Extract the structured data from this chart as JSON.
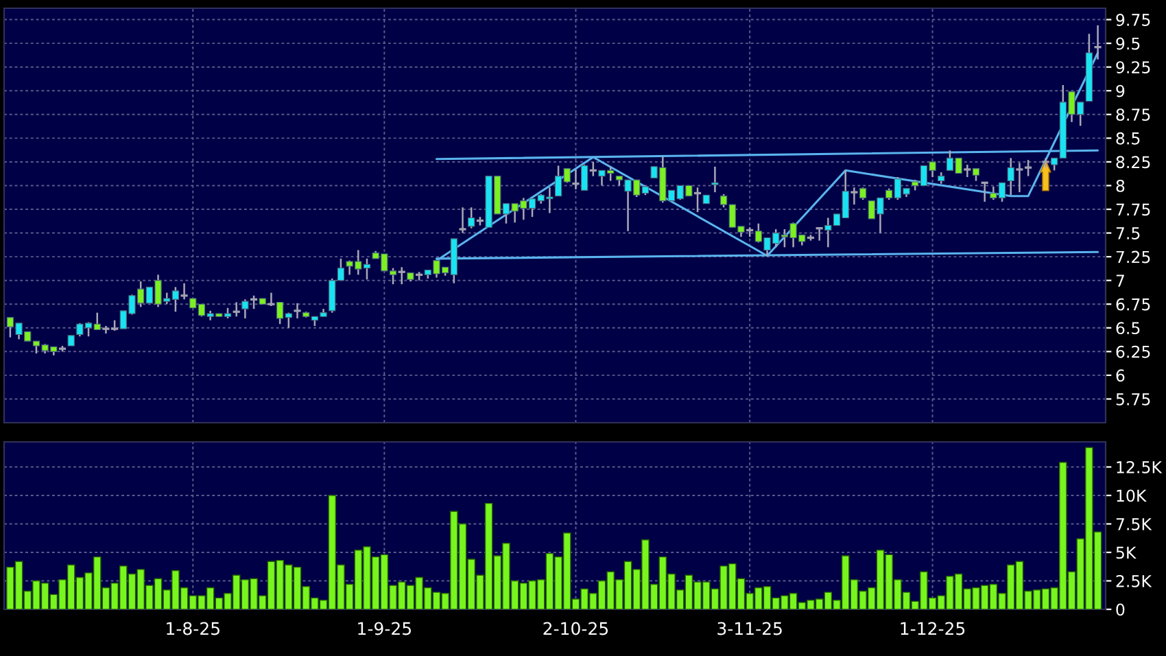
{
  "chart_data": [
    {
      "type": "candlestick",
      "categories": [
        null,
        null,
        null,
        null,
        null,
        null,
        null,
        null,
        null,
        null,
        null,
        null,
        null,
        null,
        null,
        null,
        null,
        null,
        null,
        null,
        null,
        null,
        null,
        null,
        null,
        null,
        null,
        null,
        null,
        null,
        null,
        null,
        null,
        null,
        null,
        null,
        null,
        null,
        null,
        null,
        null,
        null,
        null,
        null,
        null,
        null,
        null,
        null,
        null,
        null,
        null,
        null,
        null,
        null,
        null,
        null,
        null,
        null,
        null,
        null,
        null,
        null,
        null,
        null,
        null,
        null,
        null,
        null,
        null,
        null,
        null,
        null,
        null,
        null,
        null,
        null,
        null,
        null,
        null,
        null,
        null,
        null,
        null,
        null,
        null,
        null,
        null,
        null,
        null,
        null,
        null,
        null,
        null,
        null,
        null,
        null,
        null,
        null,
        null,
        null,
        null,
        null,
        null,
        null,
        null,
        null,
        null,
        null,
        null,
        null,
        null,
        null,
        null,
        null,
        null,
        null,
        null,
        null,
        null,
        null,
        null,
        null,
        null,
        null,
        null,
        null
      ],
      "ohlc": [
        [
          6.61,
          6.61,
          6.4,
          6.51
        ],
        [
          6.43,
          6.55,
          6.38,
          6.55
        ],
        [
          6.46,
          6.46,
          6.36,
          6.36
        ],
        [
          6.36,
          6.36,
          6.23,
          6.31
        ],
        [
          6.32,
          6.33,
          6.23,
          6.26
        ],
        [
          6.3,
          6.3,
          6.21,
          6.25
        ],
        [
          6.28,
          6.31,
          6.25,
          6.28
        ],
        [
          6.31,
          6.42,
          6.31,
          6.42
        ],
        [
          6.43,
          6.55,
          6.41,
          6.54
        ],
        [
          6.5,
          6.56,
          6.41,
          6.55
        ],
        [
          6.54,
          6.66,
          6.48,
          6.48
        ],
        [
          6.49,
          6.52,
          6.44,
          6.49
        ],
        [
          6.49,
          6.58,
          6.47,
          6.49
        ],
        [
          6.49,
          6.68,
          6.49,
          6.68
        ],
        [
          6.65,
          6.85,
          6.64,
          6.84
        ],
        [
          6.91,
          6.99,
          6.72,
          6.76
        ],
        [
          6.76,
          6.93,
          6.76,
          6.93
        ],
        [
          7.0,
          7.06,
          6.72,
          6.75
        ],
        [
          6.78,
          6.87,
          6.75,
          6.81
        ],
        [
          6.8,
          6.93,
          6.67,
          6.89
        ],
        [
          6.84,
          6.97,
          6.8,
          6.84
        ],
        [
          6.81,
          6.81,
          6.71,
          6.71
        ],
        [
          6.75,
          6.75,
          6.62,
          6.63
        ],
        [
          6.62,
          6.68,
          6.58,
          6.65
        ],
        [
          6.65,
          6.65,
          6.62,
          6.62
        ],
        [
          6.62,
          6.71,
          6.6,
          6.65
        ],
        [
          6.67,
          6.77,
          6.62,
          6.67
        ],
        [
          6.7,
          6.8,
          6.6,
          6.78
        ],
        [
          6.8,
          6.84,
          6.7,
          6.8
        ],
        [
          6.81,
          6.81,
          6.75,
          6.75
        ],
        [
          6.75,
          6.87,
          6.73,
          6.75
        ],
        [
          6.77,
          6.77,
          6.54,
          6.6
        ],
        [
          6.61,
          6.66,
          6.5,
          6.65
        ],
        [
          6.68,
          6.76,
          6.6,
          6.68
        ],
        [
          6.66,
          6.67,
          6.61,
          6.62
        ],
        [
          6.58,
          6.62,
          6.52,
          6.62
        ],
        [
          6.62,
          6.7,
          6.62,
          6.66
        ],
        [
          6.68,
          7.02,
          6.66,
          7.0
        ],
        [
          7.0,
          7.23,
          7.0,
          7.13
        ],
        [
          7.2,
          7.21,
          7.06,
          7.15
        ],
        [
          7.2,
          7.32,
          7.06,
          7.12
        ],
        [
          7.13,
          7.23,
          7.01,
          7.17
        ],
        [
          7.29,
          7.31,
          7.23,
          7.23
        ],
        [
          7.28,
          7.28,
          7.1,
          7.1
        ],
        [
          7.1,
          7.13,
          6.96,
          7.06
        ],
        [
          7.09,
          7.14,
          6.96,
          7.09
        ],
        [
          7.08,
          7.08,
          6.99,
          7.01
        ],
        [
          7.06,
          7.09,
          7.0,
          7.06
        ],
        [
          7.06,
          7.11,
          7.02,
          7.11
        ],
        [
          7.21,
          7.21,
          7.03,
          7.07
        ],
        [
          7.14,
          7.14,
          7.05,
          7.08
        ],
        [
          7.06,
          7.44,
          6.97,
          7.44
        ],
        [
          7.54,
          7.77,
          7.5,
          7.54
        ],
        [
          7.57,
          7.77,
          7.55,
          7.66
        ],
        [
          7.63,
          7.67,
          7.58,
          7.63
        ],
        [
          7.56,
          8.1,
          7.56,
          8.1
        ],
        [
          8.1,
          8.1,
          7.7,
          7.7
        ],
        [
          7.7,
          7.81,
          7.6,
          7.81
        ],
        [
          7.81,
          7.81,
          7.61,
          7.73
        ],
        [
          7.84,
          7.87,
          7.64,
          7.76
        ],
        [
          7.76,
          7.86,
          7.67,
          7.86
        ],
        [
          7.84,
          7.91,
          7.81,
          7.9
        ],
        [
          7.86,
          7.98,
          7.71,
          7.88
        ],
        [
          7.89,
          8.21,
          7.89,
          8.1
        ],
        [
          8.18,
          8.18,
          8.03,
          8.04
        ],
        [
          8.02,
          8.17,
          7.96,
          8.02
        ],
        [
          7.95,
          8.22,
          7.95,
          8.21
        ],
        [
          8.16,
          8.25,
          8.1,
          8.16
        ],
        [
          8.1,
          8.16,
          8.0,
          8.16
        ],
        [
          8.16,
          8.2,
          8.05,
          8.13
        ],
        [
          8.1,
          8.1,
          8.0,
          8.06
        ],
        [
          7.94,
          8.06,
          7.52,
          8.06
        ],
        [
          8.06,
          8.06,
          7.88,
          7.9
        ],
        [
          7.92,
          8.0,
          7.9,
          7.99
        ],
        [
          8.08,
          8.2,
          8.08,
          8.2
        ],
        [
          8.19,
          8.31,
          7.82,
          7.84
        ],
        [
          7.84,
          7.95,
          7.84,
          7.95
        ],
        [
          7.86,
          8.0,
          7.85,
          8.0
        ],
        [
          8.0,
          8.0,
          7.89,
          7.89
        ],
        [
          7.92,
          7.98,
          7.72,
          7.92
        ],
        [
          7.81,
          7.9,
          7.81,
          7.9
        ],
        [
          8.01,
          8.2,
          7.93,
          8.03
        ],
        [
          7.89,
          7.91,
          7.77,
          7.8
        ],
        [
          7.8,
          7.8,
          7.56,
          7.56
        ],
        [
          7.57,
          7.57,
          7.46,
          7.51
        ],
        [
          7.53,
          7.56,
          7.46,
          7.53
        ],
        [
          7.52,
          7.6,
          7.4,
          7.41
        ],
        [
          7.32,
          7.45,
          7.26,
          7.45
        ],
        [
          7.39,
          7.54,
          7.35,
          7.5
        ],
        [
          7.48,
          7.54,
          7.35,
          7.46
        ],
        [
          7.6,
          7.61,
          7.35,
          7.45
        ],
        [
          7.48,
          7.48,
          7.37,
          7.41
        ],
        [
          7.45,
          7.48,
          7.42,
          7.45
        ],
        [
          7.55,
          7.55,
          7.42,
          7.55
        ],
        [
          7.53,
          7.66,
          7.35,
          7.58
        ],
        [
          7.58,
          7.7,
          7.58,
          7.7
        ],
        [
          7.66,
          8.16,
          7.66,
          7.94
        ],
        [
          7.93,
          7.98,
          7.8,
          7.93
        ],
        [
          7.97,
          7.98,
          7.85,
          7.87
        ],
        [
          7.84,
          7.84,
          7.65,
          7.65
        ],
        [
          7.7,
          7.87,
          7.5,
          7.87
        ],
        [
          7.95,
          7.97,
          7.85,
          7.87
        ],
        [
          7.87,
          8.09,
          7.85,
          8.07
        ],
        [
          7.91,
          7.97,
          7.88,
          7.97
        ],
        [
          8.04,
          8.06,
          7.95,
          8.0
        ],
        [
          8.0,
          8.21,
          8.0,
          8.21
        ],
        [
          8.25,
          8.25,
          8.09,
          8.16
        ],
        [
          8.05,
          8.14,
          8.02,
          8.1
        ],
        [
          8.16,
          8.37,
          8.16,
          8.29
        ],
        [
          8.29,
          8.29,
          8.13,
          8.13
        ],
        [
          8.17,
          8.22,
          8.09,
          8.17
        ],
        [
          8.18,
          8.18,
          8.05,
          8.11
        ],
        [
          8.03,
          8.03,
          7.83,
          8.03
        ],
        [
          7.92,
          7.99,
          7.85,
          7.87
        ],
        [
          7.87,
          8.03,
          7.83,
          8.03
        ],
        [
          8.05,
          8.29,
          7.9,
          8.19
        ],
        [
          8.17,
          8.24,
          7.93,
          8.17
        ],
        [
          8.19,
          8.27,
          8.1,
          8.19
        ],
        null,
        [
          8.25,
          8.29,
          8.19,
          8.25
        ],
        [
          8.22,
          8.29,
          8.16,
          8.29
        ],
        [
          8.29,
          9.06,
          8.29,
          8.88
        ],
        [
          8.99,
          8.99,
          8.67,
          8.75
        ],
        [
          8.75,
          8.88,
          8.63,
          8.88
        ],
        [
          8.89,
          9.6,
          8.89,
          9.4
        ],
        [
          9.46,
          9.69,
          9.33,
          9.46
        ]
      ],
      "colors": [
        "#7cf021",
        "#19e3f2",
        "#7cf021",
        "#7cf021",
        "#7cf021",
        "#7cf021",
        "#a0a0b0",
        "#19e3f2",
        "#19e3f2",
        "#19e3f2",
        "#7cf021",
        "#a0a0b0",
        "#a0a0b0",
        "#19e3f2",
        "#19e3f2",
        "#7cf021",
        "#19e3f2",
        "#7cf021",
        "#19e3f2",
        "#19e3f2",
        "#a0a0b0",
        "#7cf021",
        "#7cf021",
        "#19e3f2",
        "#7cf021",
        "#19e3f2",
        "#a0a0b0",
        "#19e3f2",
        "#a0a0b0",
        "#7cf021",
        "#a0a0b0",
        "#7cf021",
        "#19e3f2",
        "#a0a0b0",
        "#7cf021",
        "#19e3f2",
        "#19e3f2",
        "#19e3f2",
        "#19e3f2",
        "#7cf021",
        "#7cf021",
        "#19e3f2",
        "#7cf021",
        "#7cf021",
        "#7cf021",
        "#a0a0b0",
        "#7cf021",
        "#a0a0b0",
        "#19e3f2",
        "#7cf021",
        "#7cf021",
        "#19e3f2",
        "#a0a0b0",
        "#19e3f2",
        "#a0a0b0",
        "#19e3f2",
        "#7cf021",
        "#19e3f2",
        "#7cf021",
        "#7cf021",
        "#19e3f2",
        "#19e3f2",
        "#19e3f2",
        "#19e3f2",
        "#7cf021",
        "#a0a0b0",
        "#19e3f2",
        "#a0a0b0",
        "#19e3f2",
        "#7cf021",
        "#7cf021",
        "#19e3f2",
        "#7cf021",
        "#19e3f2",
        "#19e3f2",
        "#7cf021",
        "#19e3f2",
        "#19e3f2",
        "#7cf021",
        "#a0a0b0",
        "#19e3f2",
        "#19e3f2",
        "#7cf021",
        "#7cf021",
        "#7cf021",
        "#a0a0b0",
        "#7cf021",
        "#19e3f2",
        "#19e3f2",
        "#7cf021",
        "#7cf021",
        "#7cf021",
        "#a0a0b0",
        "#a0a0b0",
        "#19e3f2",
        "#19e3f2",
        "#19e3f2",
        "#a0a0b0",
        "#7cf021",
        "#7cf021",
        "#19e3f2",
        "#7cf021",
        "#19e3f2",
        "#19e3f2",
        "#7cf021",
        "#19e3f2",
        "#7cf021",
        "#19e3f2",
        "#19e3f2",
        "#7cf021",
        "#a0a0b0",
        "#7cf021",
        "#a0a0b0",
        "#7cf021",
        "#19e3f2",
        "#19e3f2",
        "#a0a0b0",
        "#a0a0b0",
        "#a0a0b0",
        "#a0a0b0",
        "#19e3f2",
        "#19e3f2",
        "#7cf021",
        "#19e3f2",
        "#19e3f2",
        "#a0a0b0"
      ],
      "series": [
        {
          "type": "line",
          "color": "#5ab4ee",
          "values": [
            null,
            null,
            null,
            null,
            null,
            null,
            null,
            null,
            null,
            null,
            null,
            null,
            null,
            null,
            null,
            null,
            null,
            null,
            null,
            null,
            null,
            null,
            null,
            null,
            null,
            null,
            null,
            null,
            null,
            null,
            null,
            null,
            null,
            null,
            null,
            null,
            null,
            null,
            null,
            null,
            null,
            null,
            null,
            null,
            null,
            null,
            null,
            null,
            null,
            8.28,
            null,
            null,
            null,
            null,
            null,
            null,
            null,
            null,
            null,
            null,
            null,
            null,
            null,
            null,
            null,
            null,
            null,
            null,
            null,
            null,
            null,
            null,
            null,
            null,
            null,
            null,
            null,
            null,
            null,
            null,
            null,
            null,
            null,
            null,
            null,
            null,
            null,
            null,
            null,
            null,
            null,
            null,
            null,
            null,
            null,
            null,
            null,
            null,
            null,
            null,
            null,
            null,
            null,
            null,
            null,
            null,
            null,
            null,
            null,
            null,
            null,
            null,
            null,
            null,
            null,
            null,
            null,
            null,
            null,
            null,
            null,
            null,
            null,
            null,
            null,
            8.37
          ]
        },
        {
          "type": "line",
          "color": "#5ab4ee",
          "values": [
            null,
            null,
            null,
            null,
            null,
            null,
            null,
            null,
            null,
            null,
            null,
            null,
            null,
            null,
            null,
            null,
            null,
            null,
            null,
            null,
            null,
            null,
            null,
            null,
            null,
            null,
            null,
            null,
            null,
            null,
            null,
            null,
            null,
            null,
            null,
            null,
            null,
            null,
            null,
            null,
            null,
            null,
            null,
            null,
            null,
            null,
            null,
            null,
            null,
            7.23,
            null,
            null,
            null,
            null,
            null,
            null,
            null,
            null,
            null,
            null,
            null,
            null,
            null,
            null,
            null,
            null,
            null,
            null,
            null,
            null,
            null,
            null,
            null,
            null,
            null,
            null,
            null,
            null,
            null,
            null,
            null,
            null,
            null,
            null,
            null,
            null,
            null,
            null,
            null,
            null,
            null,
            null,
            null,
            null,
            null,
            null,
            null,
            null,
            null,
            null,
            null,
            null,
            null,
            null,
            null,
            null,
            null,
            null,
            null,
            null,
            null,
            null,
            null,
            null,
            null,
            null,
            null,
            null,
            null,
            null,
            null,
            null,
            null,
            null,
            null,
            7.3
          ]
        },
        {
          "type": "line",
          "color": "#5ab4ee",
          "values": [
            null,
            null,
            null,
            null,
            null,
            null,
            null,
            null,
            null,
            null,
            null,
            null,
            null,
            null,
            null,
            null,
            null,
            null,
            null,
            null,
            null,
            null,
            null,
            null,
            null,
            null,
            null,
            null,
            null,
            null,
            null,
            null,
            null,
            null,
            null,
            null,
            null,
            null,
            null,
            null,
            null,
            null,
            null,
            null,
            null,
            null,
            null,
            null,
            null,
            7.21,
            null,
            null,
            null,
            null,
            null,
            null,
            null,
            null,
            null,
            null,
            null,
            null,
            null,
            null,
            null,
            null,
            null,
            8.3,
            null,
            null,
            null,
            null,
            null,
            null,
            null,
            null,
            null,
            null,
            null,
            null,
            null,
            null,
            null,
            null,
            null,
            null,
            null,
            7.26,
            null,
            null,
            null,
            null,
            null,
            null,
            null,
            null,
            8.16,
            null,
            null,
            null,
            null,
            null,
            null,
            null,
            null,
            null,
            null,
            null,
            null,
            null,
            null,
            null,
            null,
            null,
            null,
            7.89,
            null,
            7.89,
            null,
            null,
            null,
            null,
            null,
            null,
            null,
            9.4
          ]
        }
      ],
      "ylim": [
        5.5,
        9.87
      ],
      "yticks": [
        5.75,
        6,
        6.25,
        6.5,
        6.75,
        7,
        7.25,
        7.5,
        7.75,
        8,
        8.25,
        8.5,
        8.75,
        9,
        9.25,
        9.5,
        9.75
      ],
      "grid": true,
      "tick_labels": "y"
    },
    {
      "type": "bar",
      "categories": [
        null,
        null,
        null,
        null,
        null,
        null,
        null,
        null,
        null,
        null,
        null,
        null,
        null,
        null,
        null,
        null,
        null,
        null,
        null,
        null,
        null,
        "1-8-25",
        null,
        null,
        null,
        null,
        null,
        null,
        null,
        null,
        null,
        null,
        null,
        null,
        null,
        null,
        null,
        null,
        null,
        null,
        null,
        null,
        null,
        "1-9-25",
        null,
        null,
        null,
        null,
        null,
        null,
        null,
        null,
        null,
        null,
        null,
        null,
        null,
        null,
        null,
        null,
        null,
        null,
        null,
        null,
        null,
        "2-10-25",
        null,
        null,
        null,
        null,
        null,
        null,
        null,
        null,
        null,
        null,
        null,
        null,
        null,
        null,
        null,
        null,
        null,
        null,
        null,
        "3-11-25",
        null,
        null,
        null,
        null,
        null,
        null,
        null,
        null,
        null,
        null,
        null,
        null,
        null,
        null,
        null,
        null,
        null,
        null,
        null,
        null,
        "1-12-25",
        null,
        null,
        null,
        null,
        null,
        null,
        null,
        null,
        null,
        null,
        null,
        null,
        null,
        null,
        null,
        null,
        null,
        null,
        null
      ],
      "values": [
        3.7,
        4.2,
        1.6,
        2.5,
        2.3,
        1.3,
        2.6,
        3.9,
        2.8,
        3.2,
        4.6,
        1.9,
        2.3,
        3.8,
        3.1,
        3.5,
        2.1,
        2.7,
        1.7,
        3.4,
        1.9,
        1.2,
        1.2,
        1.9,
        1.0,
        1.4,
        3.0,
        2.6,
        2.7,
        1.2,
        4.2,
        4.3,
        3.9,
        3.7,
        2.0,
        1.0,
        0.8,
        10.0,
        3.9,
        2.2,
        5.2,
        5.5,
        4.6,
        4.8,
        2.1,
        2.4,
        2.1,
        2.8,
        1.9,
        1.5,
        1.4,
        8.6,
        7.5,
        4.4,
        3.0,
        9.3,
        4.7,
        5.8,
        2.5,
        2.3,
        2.5,
        2.6,
        4.9,
        4.6,
        6.7,
        0.9,
        1.8,
        1.4,
        2.5,
        3.3,
        2.6,
        4.2,
        3.5,
        6.1,
        2.2,
        4.6,
        3.1,
        1.7,
        3.0,
        2.4,
        2.4,
        1.8,
        3.8,
        4.0,
        2.7,
        1.4,
        1.9,
        2.0,
        1.0,
        1.2,
        1.4,
        0.6,
        0.8,
        0.9,
        1.5,
        0.8,
        4.7,
        2.6,
        1.6,
        1.9,
        5.2,
        4.8,
        2.6,
        1.5,
        0.7,
        3.3,
        1.0,
        1.2,
        2.9,
        3.1,
        1.8,
        1.9,
        2.1,
        2.2,
        1.4,
        3.9,
        4.2,
        1.6,
        1.7,
        1.8,
        1.9,
        12.9,
        3.3,
        6.2,
        14.2,
        6.8
      ],
      "color": "#78f51e",
      "ylim": [
        0,
        14.7
      ],
      "yticks": [
        0,
        {
          "value": 2.5,
          "label": "2.5K"
        },
        {
          "value": 5,
          "label": "5K"
        },
        {
          "value": 7.5,
          "label": "7.5K"
        },
        {
          "value": 10,
          "label": "10K"
        },
        {
          "value": 12.5,
          "label": "12.5K"
        }
      ],
      "grid": true
    }
  ]
}
